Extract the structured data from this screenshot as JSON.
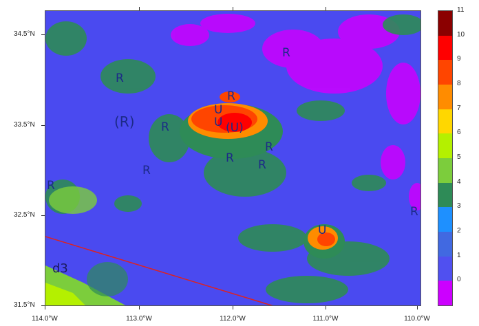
{
  "lat_labels": [
    "34.5°N",
    "33.5°N",
    "32.5°N",
    "31.5°N"
  ],
  "lon_labels": [
    "114.0°W",
    "113.0°W",
    "112.0°W",
    "111.0°W",
    "110.0°W"
  ],
  "legend": {
    "labels": [
      "11",
      "10",
      "9",
      "8",
      "7",
      "6",
      "5",
      "4",
      "3",
      "2",
      "1",
      "0"
    ],
    "colors": [
      "#8b0000",
      "#ff0000",
      "#ff4500",
      "#ff8c00",
      "#ffd700",
      "#b4f000",
      "#7ccd3c",
      "#2e8b57",
      "#1e90ff",
      "#4169e1",
      "#5050f0",
      "#cc00ff"
    ]
  },
  "map_colors": {
    "background": "#4a4af0",
    "vegetation": "#2e8b57",
    "shrub": "#7ccd3c",
    "desert": "#cc00ff",
    "urban_mid": "#ff4500",
    "urban_high": "#ff0000",
    "urban_edge": "#ff8c00",
    "light": "#b4f000",
    "domain_line": "#dd2222"
  },
  "labels": {
    "r1": "R",
    "r2": "R",
    "r3": "(R)",
    "r4": "R",
    "r5": "R",
    "r6": "R",
    "r7": "R",
    "r8": "R",
    "r9": "R",
    "r10": "R",
    "r11": "R",
    "u1": "U",
    "u2": "U",
    "u3": "(U)",
    "u4": "U",
    "domain": "d3"
  }
}
